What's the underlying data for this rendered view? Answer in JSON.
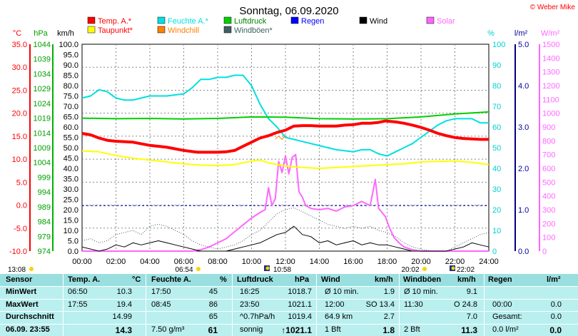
{
  "chart_data": {
    "type": "line",
    "title": "Sonntag, 06.09.2020",
    "copyright": "© Weber Mike",
    "x_ticks": [
      "00:00",
      "02:00",
      "04:00",
      "06:00",
      "08:00",
      "10:00",
      "12:00",
      "14:00",
      "16:00",
      "18:00",
      "20:00",
      "22:00",
      "24:00"
    ],
    "xlim": [
      0,
      24
    ],
    "axes": {
      "temp": {
        "unit": "°C",
        "ticks": [
          "35.0",
          "30.0",
          "25.0",
          "20.0",
          "15.0",
          "10.0",
          "5.0",
          "0.0",
          "-5.0",
          "-10.0"
        ],
        "ylim": [
          -10,
          35
        ],
        "color": "#ff0000"
      },
      "pressure": {
        "unit": "hPa",
        "ticks": [
          "1044",
          "1039",
          "1034",
          "1029",
          "1024",
          "1019",
          "1014",
          "1009",
          "1004",
          "999",
          "994",
          "989",
          "984",
          "979",
          "974"
        ],
        "ylim": [
          974,
          1044
        ],
        "color": "#00a000"
      },
      "wind": {
        "unit": "km/h",
        "ticks": [
          "100.0",
          "95.0",
          "90.0",
          "85.0",
          "80.0",
          "75.0",
          "70.0",
          "65.0",
          "60.0",
          "55.0",
          "50.0",
          "45.0",
          "40.0",
          "35.0",
          "30.0",
          "25.0",
          "20.0",
          "15.0",
          "10.0",
          "5.0",
          "0.0"
        ],
        "ylim": [
          0,
          100
        ],
        "color": "#000000"
      },
      "humidity": {
        "unit": "%",
        "ticks": [
          "100",
          "90",
          "80",
          "70",
          "60",
          "50",
          "40",
          "30",
          "20",
          "10",
          "0"
        ],
        "ylim": [
          0,
          100
        ],
        "color": "#00d0d0"
      },
      "rain": {
        "unit": "l/m²",
        "ticks": [
          "5.0",
          "4.0",
          "3.0",
          "2.0",
          "1.0",
          "0.0"
        ],
        "ylim": [
          0,
          5
        ],
        "color": "#0000a0"
      },
      "solar": {
        "unit": "W/m²",
        "ticks": [
          "1500",
          "1400",
          "1300",
          "1200",
          "1100",
          "1000",
          "900",
          "800",
          "700",
          "600",
          "500",
          "400",
          "300",
          "200",
          "100",
          "0"
        ],
        "ylim": [
          0,
          1500
        ],
        "color": "#ff66ff"
      }
    },
    "legend": [
      {
        "name": "Temp. A.*",
        "color": "#ff0000"
      },
      {
        "name": "Feuchte A.*",
        "color": "#00e0e0"
      },
      {
        "name": "Luftdruck",
        "color": "#00d000"
      },
      {
        "name": "Regen",
        "color": "#0000ff"
      },
      {
        "name": "Wind",
        "color": "#000000"
      },
      {
        "name": "Solar",
        "color": "#ff66ff"
      },
      {
        "name": "Taupunkt*",
        "color": "#ffff00"
      },
      {
        "name": "Windchill",
        "color": "#ff8000"
      },
      {
        "name": "Windböen*",
        "color": "#406060"
      }
    ],
    "series": [
      {
        "name": "Temp. A.*",
        "axis": "temp",
        "color": "#ff0000",
        "width": 4,
        "x": [
          0,
          0.5,
          1,
          1.5,
          2,
          3,
          4,
          5,
          6,
          6.8,
          7.5,
          8,
          8.5,
          9,
          9.5,
          10,
          10.5,
          11,
          11.5,
          12,
          12.5,
          13,
          13.5,
          14,
          14.5,
          15,
          15.5,
          16,
          16.5,
          17,
          17.5,
          17.9,
          18.5,
          19,
          19.5,
          20,
          20.5,
          21,
          21.5,
          22,
          22.5,
          23,
          23.5,
          24
        ],
        "y": [
          15.6,
          15.3,
          14.6,
          14.1,
          13.9,
          13.7,
          13.0,
          12.6,
          11.9,
          11.5,
          11.5,
          11.5,
          11.6,
          11.9,
          12.8,
          13.7,
          14.6,
          15.1,
          15.8,
          16.3,
          17.2,
          17.3,
          17.3,
          17.2,
          17.2,
          17.2,
          17.4,
          17.5,
          17.8,
          17.8,
          18.0,
          18.3,
          18.1,
          17.8,
          17.4,
          16.9,
          16.3,
          15.6,
          15.1,
          14.7,
          14.5,
          14.4,
          14.3,
          14.3
        ]
      },
      {
        "name": "Taupunkt*",
        "axis": "temp",
        "color": "#ffff00",
        "width": 2,
        "x": [
          0,
          1,
          2,
          3,
          4,
          5,
          6,
          7,
          8,
          9,
          10,
          10.5,
          11,
          12,
          13,
          14,
          15,
          16,
          17,
          18,
          19,
          20,
          21,
          22,
          23,
          24
        ],
        "y": [
          11.8,
          11.6,
          10.8,
          10.2,
          9.8,
          9.4,
          9.0,
          8.7,
          8.6,
          8.8,
          9.6,
          9.8,
          9.2,
          8.5,
          8.2,
          8.0,
          8.2,
          8.4,
          8.6,
          8.8,
          9.0,
          9.4,
          9.5,
          9.6,
          9.3,
          8.8
        ]
      },
      {
        "name": "Feuchte A.*",
        "axis": "humidity",
        "color": "#00e0e0",
        "width": 2,
        "x": [
          0,
          0.5,
          1,
          1.5,
          2,
          2.5,
          3,
          3.5,
          4,
          5,
          6,
          6.5,
          7,
          7.5,
          8,
          8.5,
          9,
          9.5,
          10,
          10.5,
          11,
          11.5,
          12,
          13,
          14,
          15,
          16,
          16.5,
          17,
          17.5,
          18,
          18.5,
          19,
          19.5,
          20,
          20.5,
          21,
          21.5,
          22,
          22.5,
          23,
          23.5,
          24
        ],
        "y": [
          74,
          75,
          78,
          77,
          74,
          73,
          73,
          74,
          75,
          75,
          76,
          79,
          83,
          83,
          84,
          84,
          85,
          85,
          80,
          71,
          64,
          60,
          55,
          53,
          51,
          49,
          48,
          49,
          49,
          47,
          46,
          48,
          50,
          52,
          55,
          58,
          61,
          63,
          64,
          64,
          64,
          62,
          62
        ]
      },
      {
        "name": "Luftdruck",
        "axis": "pressure",
        "color": "#00d000",
        "width": 2,
        "x": [
          0,
          2,
          4,
          6,
          8,
          10,
          12,
          14,
          16,
          18,
          20,
          22,
          24
        ],
        "y": [
          1019.0,
          1018.8,
          1018.9,
          1018.7,
          1018.9,
          1019.4,
          1019.3,
          1018.8,
          1018.7,
          1018.8,
          1019.4,
          1020.4,
          1021.1
        ]
      },
      {
        "name": "Windchill",
        "axis": "temp",
        "color": "#ff8000",
        "width": 1,
        "x": [
          11.4,
          11.6,
          11.8,
          12.0
        ],
        "y": [
          14.4,
          15.0,
          14.3,
          15.2
        ]
      },
      {
        "name": "Solar",
        "axis": "solar",
        "color": "#ff66ff",
        "width": 2,
        "x": [
          0,
          6.5,
          7,
          7.5,
          8,
          8.5,
          9,
          9.5,
          10,
          10.5,
          10.8,
          11,
          11.2,
          11.4,
          11.6,
          11.8,
          12,
          12.2,
          12.4,
          12.6,
          12.8,
          13,
          13.2,
          13.5,
          14,
          14.5,
          15,
          15.5,
          16,
          16.5,
          17,
          17.3,
          17.5,
          17.7,
          17.9,
          18.1,
          18.4,
          18.7,
          19,
          19.5,
          20,
          24
        ],
        "y": [
          0,
          0,
          10,
          30,
          60,
          90,
          140,
          190,
          240,
          280,
          300,
          460,
          330,
          380,
          650,
          570,
          690,
          560,
          680,
          700,
          430,
          390,
          330,
          310,
          300,
          310,
          290,
          320,
          330,
          360,
          330,
          520,
          310,
          280,
          250,
          180,
          100,
          60,
          30,
          10,
          0,
          0
        ]
      },
      {
        "name": "Windböen*",
        "axis": "wind",
        "color": "#406060",
        "width": 1,
        "dotted": true,
        "x": [
          0,
          0.5,
          1,
          1.5,
          2,
          2.5,
          3,
          3.5,
          4,
          4.5,
          5,
          5.5,
          6,
          6.5,
          7,
          7.5,
          8,
          8.5,
          9,
          9.5,
          10,
          10.5,
          11,
          11.5,
          12,
          12.5,
          13,
          13.5,
          14,
          14.5,
          15,
          15.5,
          16,
          16.5,
          17,
          17.5,
          18,
          18.5,
          19,
          19.5,
          20,
          20.5,
          21,
          21.5,
          22,
          22.5,
          23,
          23.5,
          24
        ],
        "y": [
          5,
          6,
          4,
          5,
          8,
          9,
          10,
          8,
          12,
          13,
          12,
          10,
          8,
          5,
          3,
          2,
          1,
          2,
          3,
          5,
          8,
          10,
          14,
          18,
          20,
          21,
          19,
          17,
          15,
          13,
          12,
          11,
          12,
          11,
          12,
          10,
          9,
          7,
          4,
          2,
          1,
          0,
          0,
          0,
          2,
          4,
          6,
          8,
          9
        ]
      },
      {
        "name": "Wind",
        "axis": "wind",
        "color": "#000000",
        "width": 1,
        "x": [
          0,
          0.5,
          1,
          1.5,
          2,
          2.5,
          3,
          3.5,
          4,
          4.5,
          5,
          5.5,
          6,
          6.5,
          7,
          7.5,
          8,
          8.5,
          9,
          9.5,
          10,
          10.5,
          11,
          11.5,
          12,
          12.5,
          13,
          13.5,
          14,
          14.5,
          15,
          15.5,
          16,
          16.5,
          17,
          17.5,
          18,
          18.5,
          19,
          19.5,
          20,
          20.5,
          21,
          21.5,
          22,
          22.5,
          23,
          23.5,
          24
        ],
        "y": [
          2,
          1,
          0,
          1,
          3,
          2,
          4,
          3,
          4,
          5,
          4,
          3,
          2,
          1,
          0,
          0,
          0,
          0,
          1,
          2,
          3,
          4,
          6,
          8,
          9,
          12,
          8,
          7,
          4,
          5,
          3,
          4,
          5,
          3,
          4,
          3,
          3,
          2,
          1,
          0,
          0,
          0,
          0,
          0,
          1,
          2,
          4,
          3,
          2
        ]
      }
    ],
    "markers": [
      {
        "label": "13:08",
        "value": "sun",
        "pos": "left"
      },
      {
        "label": "06:54",
        "value": "sun"
      },
      {
        "label": "10:58",
        "value": "moon"
      },
      {
        "label": "20:02",
        "value": "sun"
      },
      {
        "label": "22:02",
        "value": "moon"
      }
    ]
  },
  "table": {
    "headers": [
      "Sensor",
      "Temp. A.",
      "°C",
      "Feuchte A.",
      "%",
      "Luftdruck",
      "hPa",
      "Wind",
      "km/h",
      "Windböen",
      "km/h",
      "Regen",
      "l/m²"
    ],
    "rows": [
      {
        "label": "MinWert",
        "cells": [
          "06:50",
          "10.3",
          "17:50",
          "45",
          "16:25",
          "1018.7",
          "Ø 10 min.",
          "1.9",
          "Ø 10 min.",
          "9.1",
          "",
          ""
        ]
      },
      {
        "label": "MaxWert",
        "cells": [
          "17:55",
          "19.4",
          "08:45",
          "86",
          "23:50",
          "1021.1",
          "12:00",
          "SO 13.4",
          "11:30",
          "O 24.8",
          "00:00",
          "0.0"
        ]
      },
      {
        "label": "Durchschnitt",
        "cells": [
          "",
          "14.99",
          "",
          "65",
          "^0.7hPa/h",
          "1019.4",
          "64.9 km",
          "2.7",
          "",
          "7.0",
          "Gesamt:",
          "0.0"
        ]
      },
      {
        "label": "06.09.  23:55",
        "cells": [
          "",
          "14.3",
          "7.50 g/m³",
          "61",
          "sonnig",
          "↑1021.1",
          "1 Bft",
          "1.8",
          "2 Bft",
          "11.3",
          "0.0 l/m²",
          "0.0"
        ]
      }
    ]
  }
}
